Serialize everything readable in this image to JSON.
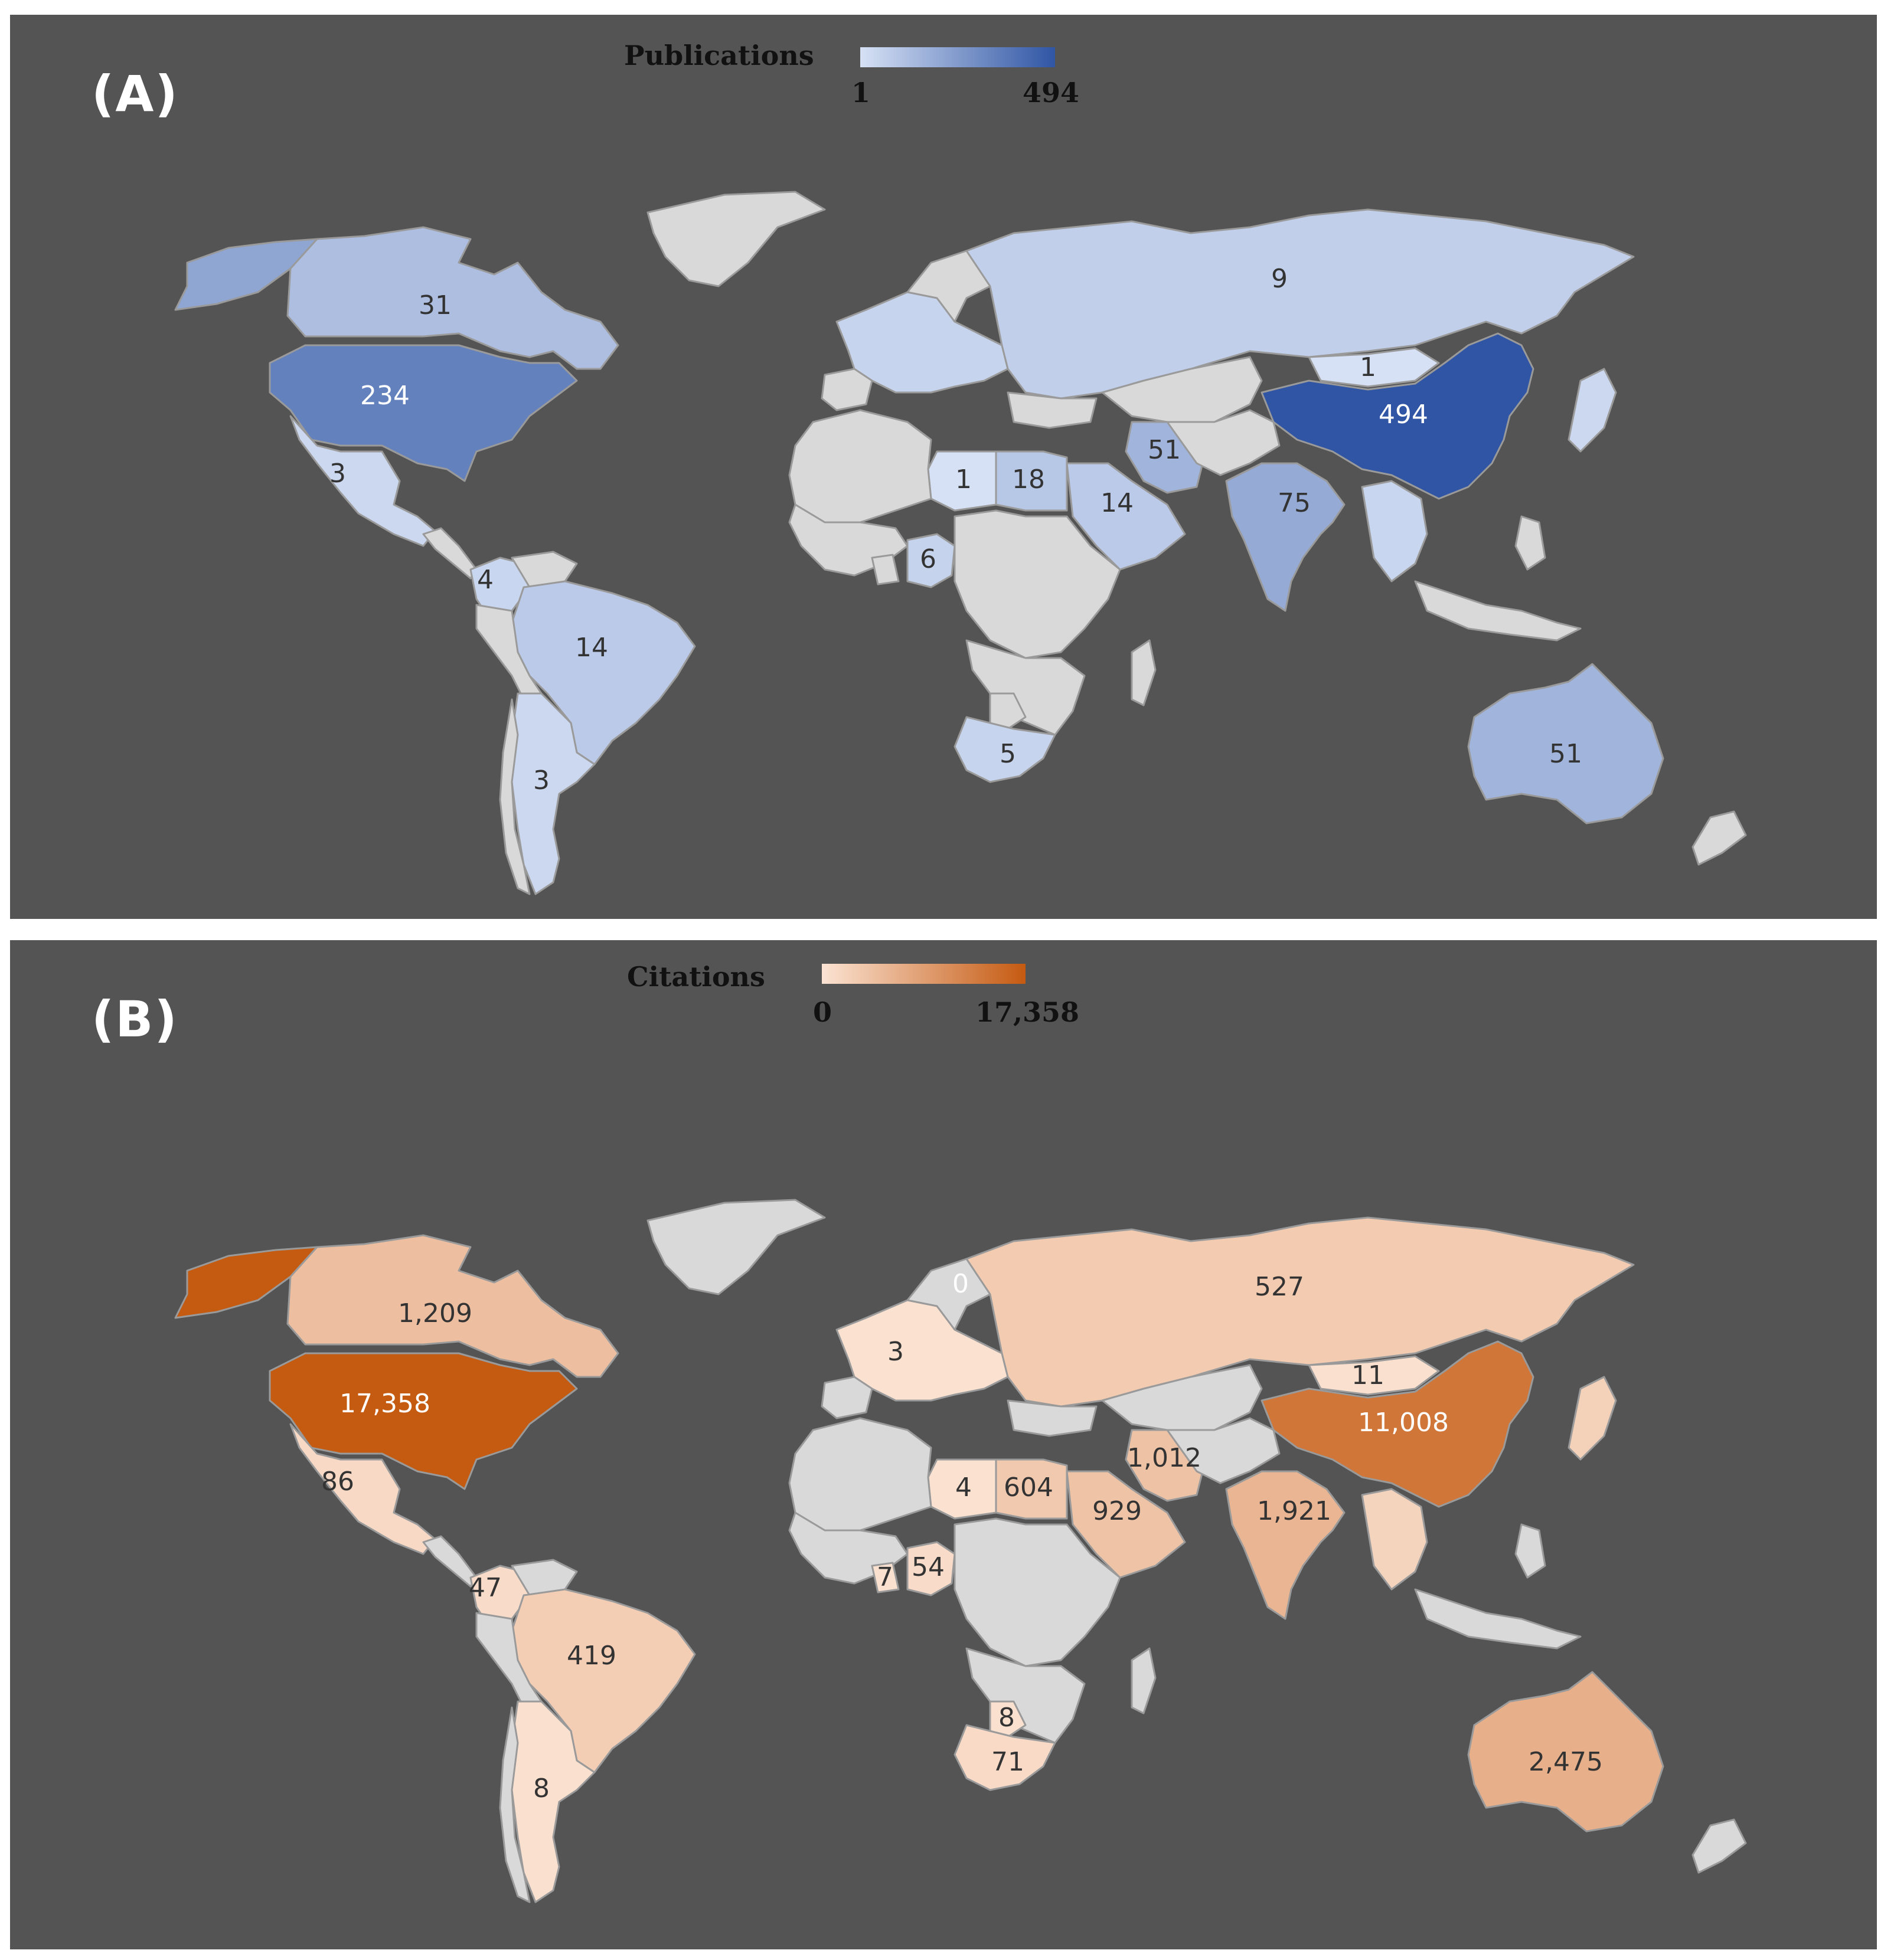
{
  "panels": [
    {
      "label": "(A)",
      "legend": {
        "title": "Publications",
        "min_label": "1",
        "max_label": "494",
        "min_value": 1,
        "max_value": 494,
        "color_low": "#d6e1f5",
        "color_high": "#2f55a4"
      },
      "no_data_color": "#d9d9d9",
      "values": {
        "alaska": 90,
        "canada": 31,
        "usa": 234,
        "mexico": 3,
        "colombia": 4,
        "brazil": 14,
        "argentina": 3,
        "europe": 5,
        "russia": 9,
        "mongolia": 1,
        "china": 494,
        "iran": 51,
        "libya": 1,
        "egypt": 18,
        "saudi": 14,
        "india": 75,
        "nigeria": 6,
        "southafrica": 5,
        "australia": 51,
        "seasia": 4,
        "japan": 3
      },
      "labels": [
        {
          "region": "canada",
          "text": "31"
        },
        {
          "region": "usa",
          "text": "234"
        },
        {
          "region": "mexico",
          "text": "3"
        },
        {
          "region": "colombia",
          "text": "4"
        },
        {
          "region": "brazil",
          "text": "14"
        },
        {
          "region": "argentina",
          "text": "3"
        },
        {
          "region": "russia",
          "text": "9"
        },
        {
          "region": "mongolia",
          "text": "1"
        },
        {
          "region": "china",
          "text": "494"
        },
        {
          "region": "iran",
          "text": "51"
        },
        {
          "region": "libya",
          "text": "1"
        },
        {
          "region": "egypt",
          "text": "18"
        },
        {
          "region": "saudi",
          "text": "14"
        },
        {
          "region": "india",
          "text": "75"
        },
        {
          "region": "nigeria",
          "text": "6"
        },
        {
          "region": "southafrica",
          "text": "5"
        },
        {
          "region": "australia",
          "text": "51"
        }
      ]
    },
    {
      "label": "(B)",
      "legend": {
        "title": "Citations",
        "min_label": "0",
        "max_label": "17,358",
        "min_value": 0,
        "max_value": 17358,
        "color_low": "#fbe3d3",
        "color_high": "#c55a11"
      },
      "no_data_color": "#d9d9d9",
      "values": {
        "alaska": 17358,
        "canada": 1209,
        "usa": 17358,
        "mexico": 86,
        "colombia": 47,
        "brazil": 419,
        "argentina": 8,
        "europe": 3,
        "russia": 527,
        "mongolia": 11,
        "china": 11008,
        "iran": 1012,
        "libya": 4,
        "egypt": 604,
        "saudi": 929,
        "india": 1921,
        "ghana": 7,
        "nigeria": 54,
        "botswana": 8,
        "southafrica": 71,
        "australia": 2475,
        "seasia": 200,
        "japan": 300
      },
      "labels": [
        {
          "region": "canada",
          "text": "1,209"
        },
        {
          "region": "usa",
          "text": "17,358"
        },
        {
          "region": "mexico",
          "text": "86"
        },
        {
          "region": "colombia",
          "text": "47"
        },
        {
          "region": "brazil",
          "text": "419"
        },
        {
          "region": "argentina",
          "text": "8"
        },
        {
          "region": "europe",
          "text": "3"
        },
        {
          "region": "scandinavia",
          "text": "0"
        },
        {
          "region": "russia",
          "text": "527"
        },
        {
          "region": "mongolia",
          "text": "11"
        },
        {
          "region": "china",
          "text": "11,008"
        },
        {
          "region": "iran",
          "text": "1,012"
        },
        {
          "region": "libya",
          "text": "4"
        },
        {
          "region": "egypt",
          "text": "604"
        },
        {
          "region": "saudi",
          "text": "929"
        },
        {
          "region": "india",
          "text": "1,921"
        },
        {
          "region": "ghana",
          "text": "7"
        },
        {
          "region": "nigeria",
          "text": "54"
        },
        {
          "region": "botswana",
          "text": "8"
        },
        {
          "region": "southafrica",
          "text": "71"
        },
        {
          "region": "australia",
          "text": "2,475"
        }
      ]
    }
  ]
}
